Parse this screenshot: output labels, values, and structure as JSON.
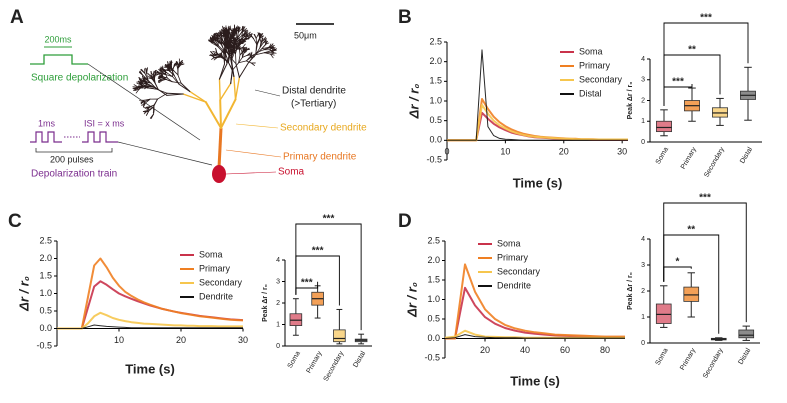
{
  "diagram": {
    "panel": "A",
    "square_duration": "200ms",
    "square_label": "Square depolarization",
    "pulse_width": "1ms",
    "isi": "ISI = x ms",
    "pulse_count": "200 pulses",
    "train_label": "Depolarization train",
    "scale": "50μm",
    "distal": "Distal dendrite",
    "distal_sub": "(>Tertiary)",
    "secondary": "Secondary dendrite",
    "primary": "Primary dendrite",
    "soma": "Soma"
  },
  "chart_data": [
    {
      "type": "line",
      "panel": "B",
      "ylabel": "Δr / r₀",
      "xlabel": "Time (s)",
      "xlim": [
        0,
        31
      ],
      "xticks": [
        0,
        10,
        20,
        30
      ],
      "ylim": [
        -0.5,
        2.5
      ],
      "yticks": [
        -0.5,
        {
          "value": 0,
          "label": "0.0"
        },
        0.5,
        {
          "value": 1,
          "label": "1.0"
        },
        1.5,
        {
          "value": 2,
          "label": "2.0"
        },
        2.5
      ],
      "x": [
        0,
        1,
        2,
        3,
        4,
        5,
        6,
        7,
        8,
        9,
        10,
        11,
        12,
        13,
        14,
        15,
        16,
        17,
        18,
        19,
        20,
        21,
        22,
        23,
        24,
        25,
        26,
        27,
        28,
        29,
        30,
        31
      ],
      "series": [
        {
          "name": "Soma",
          "color": "#c9334b",
          "values": [
            0,
            0,
            0,
            0,
            0,
            0,
            0.7,
            0.55,
            0.42,
            0.33,
            0.26,
            0.2,
            0.16,
            0.13,
            0.1,
            0.08,
            0.07,
            0.06,
            0.05,
            0.04,
            0.03,
            0.03,
            0.02,
            0.02,
            0.02,
            0.01,
            0.01,
            0.01,
            0.01,
            0.01,
            0.01,
            0.01
          ]
        },
        {
          "name": "Primary",
          "color": "#ef7f22",
          "values": [
            0,
            0,
            0,
            0,
            0,
            0,
            1.05,
            0.8,
            0.6,
            0.46,
            0.36,
            0.28,
            0.22,
            0.17,
            0.14,
            0.11,
            0.09,
            0.08,
            0.07,
            0.06,
            0.05,
            0.04,
            0.04,
            0.03,
            0.03,
            0.03,
            0.02,
            0.02,
            0.02,
            0.02,
            0.02,
            0.02
          ]
        },
        {
          "name": "Secondary",
          "color": "#f6c64e",
          "values": [
            0,
            0,
            0,
            0,
            0,
            0,
            0.9,
            0.68,
            0.5,
            0.38,
            0.3,
            0.23,
            0.18,
            0.14,
            0.11,
            0.09,
            0.08,
            0.07,
            0.06,
            0.05,
            0.04,
            0.04,
            0.03,
            0.03,
            0.03,
            0.02,
            0.02,
            0.02,
            0.02,
            0.02,
            0.02,
            0.02
          ]
        },
        {
          "name": "Distal",
          "color": "#111111",
          "values": [
            0,
            0,
            0,
            0,
            0,
            0,
            2.3,
            0.35,
            0.12,
            0.05,
            0.03,
            0.02,
            0.01,
            0,
            0,
            0,
            0,
            0,
            0,
            0,
            0,
            0,
            0,
            0,
            0,
            0,
            0,
            0,
            0,
            0,
            0,
            0
          ]
        }
      ]
    },
    {
      "type": "box",
      "ylabel": "Peak Δr / r₀",
      "ylim": [
        0,
        4
      ],
      "yticks": [
        0,
        1,
        2,
        3,
        4
      ],
      "categories": [
        "Soma",
        "Primary",
        "Secondary",
        "Distal"
      ],
      "colors": [
        "#e07b89",
        "#f3a057",
        "#f9d68a",
        "#8c8c8c"
      ],
      "boxes": [
        {
          "min": 0.3,
          "q1": 0.5,
          "median": 0.7,
          "q3": 1.0,
          "max": 1.55
        },
        {
          "min": 1.0,
          "q1": 1.5,
          "median": 1.75,
          "q3": 2.0,
          "max": 2.6
        },
        {
          "min": 0.8,
          "q1": 1.2,
          "median": 1.4,
          "q3": 1.65,
          "max": 2.1
        },
        {
          "min": 1.05,
          "q1": 2.05,
          "median": 2.25,
          "q3": 2.45,
          "max": 3.6
        }
      ],
      "significance": [
        "***",
        "**",
        "***"
      ]
    },
    {
      "type": "line",
      "panel": "C",
      "ylabel": "Δr / r₀",
      "xlabel": "Time (s)",
      "xlim": [
        0,
        30
      ],
      "xticks": [
        10,
        20,
        30
      ],
      "ylim": [
        -0.5,
        2.5
      ],
      "yticks": [
        -0.5,
        {
          "value": 0,
          "label": "0.0"
        },
        0.5,
        {
          "value": 1,
          "label": "1.0"
        },
        1.5,
        {
          "value": 2,
          "label": "2.0"
        },
        2.5
      ],
      "x": [
        0,
        1,
        2,
        3,
        4,
        5,
        6,
        7,
        8,
        9,
        10,
        11,
        12,
        13,
        14,
        15,
        16,
        17,
        18,
        19,
        20,
        21,
        22,
        23,
        24,
        25,
        26,
        27,
        28,
        29,
        30
      ],
      "series": [
        {
          "name": "Soma",
          "color": "#c9334b",
          "values": [
            0,
            0,
            0,
            0,
            0,
            0.6,
            1.2,
            1.35,
            1.25,
            1.12,
            1.0,
            0.92,
            0.85,
            0.78,
            0.72,
            0.66,
            0.61,
            0.56,
            0.52,
            0.48,
            0.45,
            0.42,
            0.39,
            0.36,
            0.34,
            0.32,
            0.3,
            0.28,
            0.26,
            0.25,
            0.24
          ]
        },
        {
          "name": "Primary",
          "color": "#ef7f22",
          "values": [
            0,
            0,
            0,
            0,
            0,
            0.9,
            1.8,
            2.0,
            1.75,
            1.45,
            1.22,
            1.05,
            0.93,
            0.83,
            0.75,
            0.68,
            0.62,
            0.56,
            0.52,
            0.48,
            0.44,
            0.41,
            0.38,
            0.35,
            0.33,
            0.31,
            0.29,
            0.27,
            0.25,
            0.24,
            0.23
          ]
        },
        {
          "name": "Secondary",
          "color": "#f6c64e",
          "values": [
            0,
            0,
            0,
            0,
            0,
            0.15,
            0.35,
            0.45,
            0.38,
            0.3,
            0.25,
            0.21,
            0.18,
            0.16,
            0.14,
            0.13,
            0.12,
            0.11,
            0.1,
            0.09,
            0.09,
            0.08,
            0.08,
            0.07,
            0.07,
            0.07,
            0.06,
            0.06,
            0.06,
            0.06,
            0.06
          ]
        },
        {
          "name": "Dendrite",
          "color": "#111111",
          "values": [
            0,
            0,
            0,
            0,
            0,
            0.05,
            0.1,
            0.08,
            0.06,
            0.05,
            0.04,
            0.03,
            0.02,
            0.02,
            0.02,
            0.02,
            0.02,
            0.02,
            0.02,
            0.02,
            0.02,
            0.02,
            0.02,
            0.02,
            0.02,
            0.02,
            0.02,
            0.02,
            0.02,
            0.02,
            0.02
          ]
        }
      ]
    },
    {
      "type": "box",
      "ylabel": "Peak Δr / r₀",
      "ylim": [
        0,
        4
      ],
      "yticks": [
        0,
        1,
        2,
        3,
        4
      ],
      "categories": [
        "Soma",
        "Primary",
        "Secondary",
        "Distal"
      ],
      "colors": [
        "#e07b89",
        "#f3a057",
        "#f9d68a",
        "#8c8c8c"
      ],
      "boxes": [
        {
          "min": 0.5,
          "q1": 0.95,
          "median": 1.2,
          "q3": 1.5,
          "max": 2.2
        },
        {
          "min": 1.3,
          "q1": 1.9,
          "median": 2.2,
          "q3": 2.5,
          "max": 2.8
        },
        {
          "min": 0.1,
          "q1": 0.2,
          "median": 0.35,
          "q3": 0.75,
          "max": 1.7
        },
        {
          "min": 0.1,
          "q1": 0.2,
          "median": 0.27,
          "q3": 0.32,
          "max": 0.55
        }
      ],
      "significance": [
        "***",
        "***",
        "***"
      ]
    },
    {
      "type": "line",
      "panel": "D",
      "ylabel": "Δr / r₀",
      "xlabel": "Time (s)",
      "xlim": [
        0,
        90
      ],
      "xticks": [
        20,
        40,
        60,
        80
      ],
      "ylim": [
        -0.5,
        2.5
      ],
      "yticks": [
        -0.5,
        {
          "value": 0,
          "label": "0.0"
        },
        0.5,
        {
          "value": 1,
          "label": "1.0"
        },
        1.5,
        {
          "value": 2,
          "label": "2.0"
        },
        2.5
      ],
      "x": [
        0,
        5,
        10,
        15,
        20,
        25,
        30,
        35,
        40,
        45,
        50,
        55,
        60,
        65,
        70,
        75,
        80,
        85,
        90
      ],
      "series": [
        {
          "name": "Soma",
          "color": "#c9334b",
          "values": [
            0,
            0,
            1.3,
            0.85,
            0.55,
            0.38,
            0.27,
            0.2,
            0.15,
            0.12,
            0.1,
            0.08,
            0.07,
            0.06,
            0.05,
            0.05,
            0.04,
            0.04,
            0.04
          ]
        },
        {
          "name": "Primary",
          "color": "#ef7f22",
          "values": [
            0,
            0,
            1.9,
            1.2,
            0.75,
            0.5,
            0.35,
            0.26,
            0.2,
            0.16,
            0.13,
            0.1,
            0.09,
            0.08,
            0.07,
            0.06,
            0.05,
            0.05,
            0.05
          ]
        },
        {
          "name": "Secondary",
          "color": "#f6c64e",
          "values": [
            0.02,
            0.05,
            0.2,
            0.1,
            0.05,
            0.04,
            0.03,
            0.03,
            0.02,
            0.02,
            0.02,
            0.02,
            0.02,
            0.02,
            0.02,
            0.02,
            0.02,
            0.02,
            0.02
          ]
        },
        {
          "name": "Dendrite",
          "color": "#111111",
          "values": [
            0,
            0.02,
            0.1,
            0.05,
            0.03,
            0.02,
            0.02,
            0.02,
            0.01,
            0.01,
            0.01,
            0.01,
            0.01,
            0.01,
            0.01,
            0.01,
            0.01,
            0.01,
            0.01
          ]
        }
      ]
    },
    {
      "type": "box",
      "ylabel": "Peak Δr / r₀",
      "ylim": [
        0,
        4
      ],
      "yticks": [
        0,
        1,
        2,
        3,
        4
      ],
      "categories": [
        "Soma",
        "Primary",
        "Secondary",
        "Distal"
      ],
      "colors": [
        "#e07b89",
        "#f3a057",
        "#f9d68a",
        "#8c8c8c"
      ],
      "boxes": [
        {
          "min": 0.6,
          "q1": 0.75,
          "median": 1.1,
          "q3": 1.5,
          "max": 2.2
        },
        {
          "min": 1.0,
          "q1": 1.6,
          "median": 1.85,
          "q3": 2.15,
          "max": 2.7
        },
        {
          "min": 0.1,
          "q1": 0.12,
          "median": 0.15,
          "q3": 0.18,
          "max": 0.2
        },
        {
          "min": 0.1,
          "q1": 0.2,
          "median": 0.3,
          "q3": 0.5,
          "max": 0.65
        }
      ],
      "significance": [
        "*",
        "**",
        "***"
      ]
    }
  ]
}
